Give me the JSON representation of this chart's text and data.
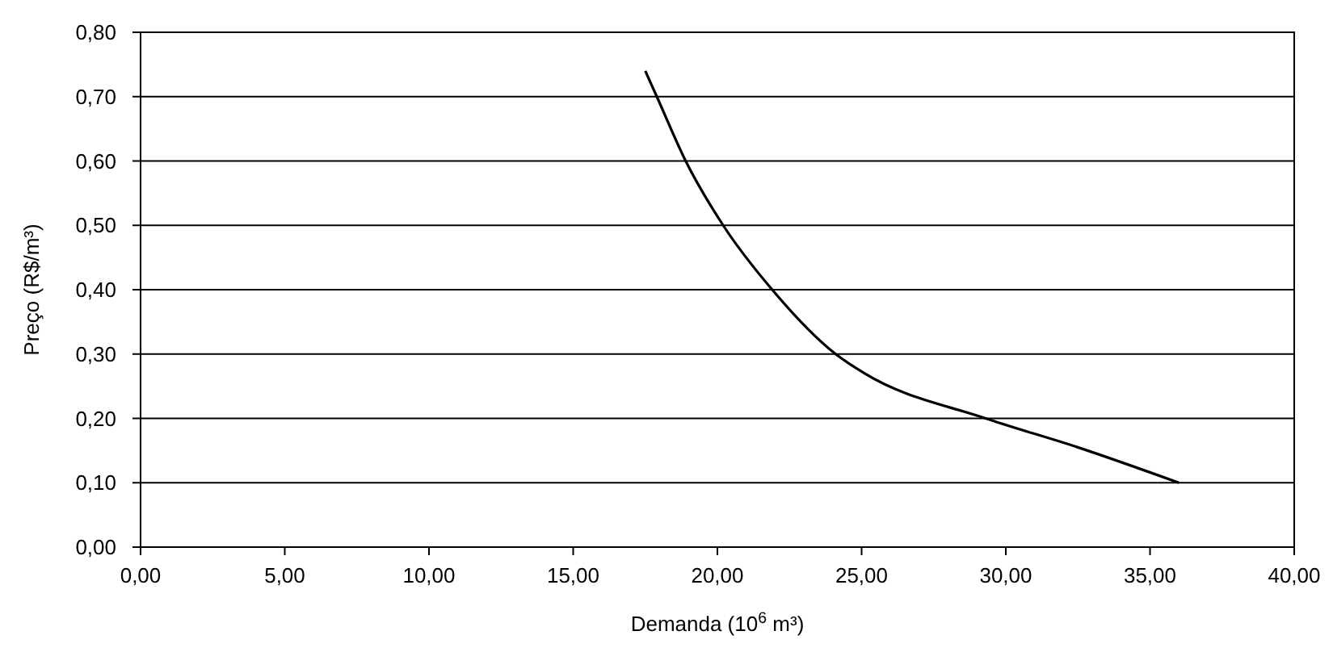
{
  "chart_data": {
    "type": "line",
    "xlabel": "Demanda (10$^{6}$ m³)",
    "ylabel": "Preço (R$/m³)",
    "x": [
      17.5,
      17.9,
      18.9,
      20.2,
      21.9,
      24.1,
      25.1,
      29.3,
      32.5,
      36.0
    ],
    "series": [
      {
        "color": "#000000",
        "values": [
          0.74,
          0.7,
          0.6,
          0.5,
          0.4,
          0.3,
          0.27,
          0.2,
          0.155,
          0.1
        ]
      }
    ],
    "xlim": [
      0,
      40
    ],
    "ylim": [
      0,
      0.8
    ],
    "xticks": [
      {
        "value": 0,
        "label": "0,00"
      },
      {
        "value": 5,
        "label": "5,00"
      },
      {
        "value": 10,
        "label": "10,00"
      },
      {
        "value": 15,
        "label": "15,00"
      },
      {
        "value": 20,
        "label": "20,00"
      },
      {
        "value": 25,
        "label": "25,00"
      },
      {
        "value": 30,
        "label": "30,00"
      },
      {
        "value": 35,
        "label": "35,00"
      },
      {
        "value": 40,
        "label": "40,00"
      }
    ],
    "yticks": [
      {
        "value": 0,
        "label": "0,00"
      },
      {
        "value": 0.1,
        "label": "0,10"
      },
      {
        "value": 0.2,
        "label": "0,20"
      },
      {
        "value": 0.3,
        "label": "0,30"
      },
      {
        "value": 0.4,
        "label": "0,40"
      },
      {
        "value": 0.5,
        "label": "0,50"
      },
      {
        "value": 0.6,
        "label": "0,60"
      },
      {
        "value": 0.7,
        "label": "0,70"
      },
      {
        "value": 0.8,
        "label": "0,80"
      }
    ],
    "grid": "y",
    "marker": "none",
    "line_style": "solid"
  }
}
